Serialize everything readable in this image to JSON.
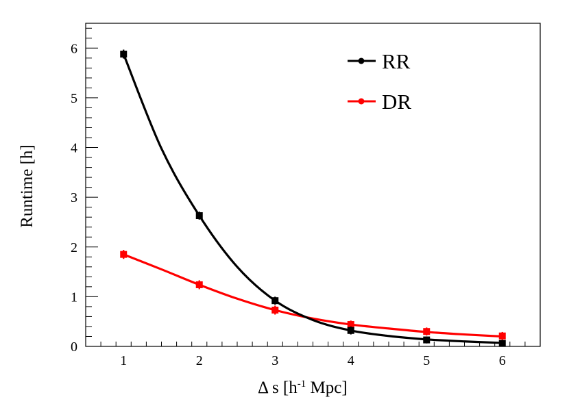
{
  "chart_data": {
    "type": "line",
    "title": "",
    "xlabel": "Δ s [h⁻¹ Mpc]",
    "ylabel": "Runtime [h]",
    "xlim": [
      0.5,
      6.5
    ],
    "ylim": [
      0,
      6.5
    ],
    "x_ticks": [
      "1",
      "2",
      "3",
      "4",
      "5",
      "6"
    ],
    "y_ticks": [
      "0",
      "1",
      "2",
      "3",
      "4",
      "5",
      "6"
    ],
    "legend_position": "top-right",
    "series": [
      {
        "name": "RR",
        "color": "#000000",
        "x": [
          1,
          2,
          3,
          4,
          5,
          6
        ],
        "values": [
          5.88,
          2.63,
          0.92,
          0.32,
          0.13,
          0.06
        ],
        "errors": [
          0.09,
          0.08,
          0.08,
          0.08,
          0.07,
          0.05
        ],
        "fit": [
          [
            1,
            5.88
          ],
          [
            1.5,
            3.98
          ],
          [
            2,
            2.63
          ],
          [
            2.5,
            1.6
          ],
          [
            3,
            0.92
          ],
          [
            3.5,
            0.53
          ],
          [
            4,
            0.32
          ],
          [
            4.5,
            0.21
          ],
          [
            5,
            0.14
          ],
          [
            5.5,
            0.1
          ],
          [
            6,
            0.07
          ]
        ]
      },
      {
        "name": "DR",
        "color": "#ff0000",
        "x": [
          1,
          2,
          3,
          4,
          5,
          6
        ],
        "values": [
          1.85,
          1.24,
          0.73,
          0.44,
          0.3,
          0.21
        ],
        "errors": [
          0.09,
          0.09,
          0.09,
          0.08,
          0.08,
          0.08
        ],
        "fit": [
          [
            1,
            1.85
          ],
          [
            1.5,
            1.55
          ],
          [
            2,
            1.24
          ],
          [
            2.5,
            0.96
          ],
          [
            3,
            0.73
          ],
          [
            3.5,
            0.56
          ],
          [
            4,
            0.44
          ],
          [
            4.5,
            0.36
          ],
          [
            5,
            0.29
          ],
          [
            5.5,
            0.24
          ],
          [
            6,
            0.2
          ]
        ]
      }
    ]
  }
}
